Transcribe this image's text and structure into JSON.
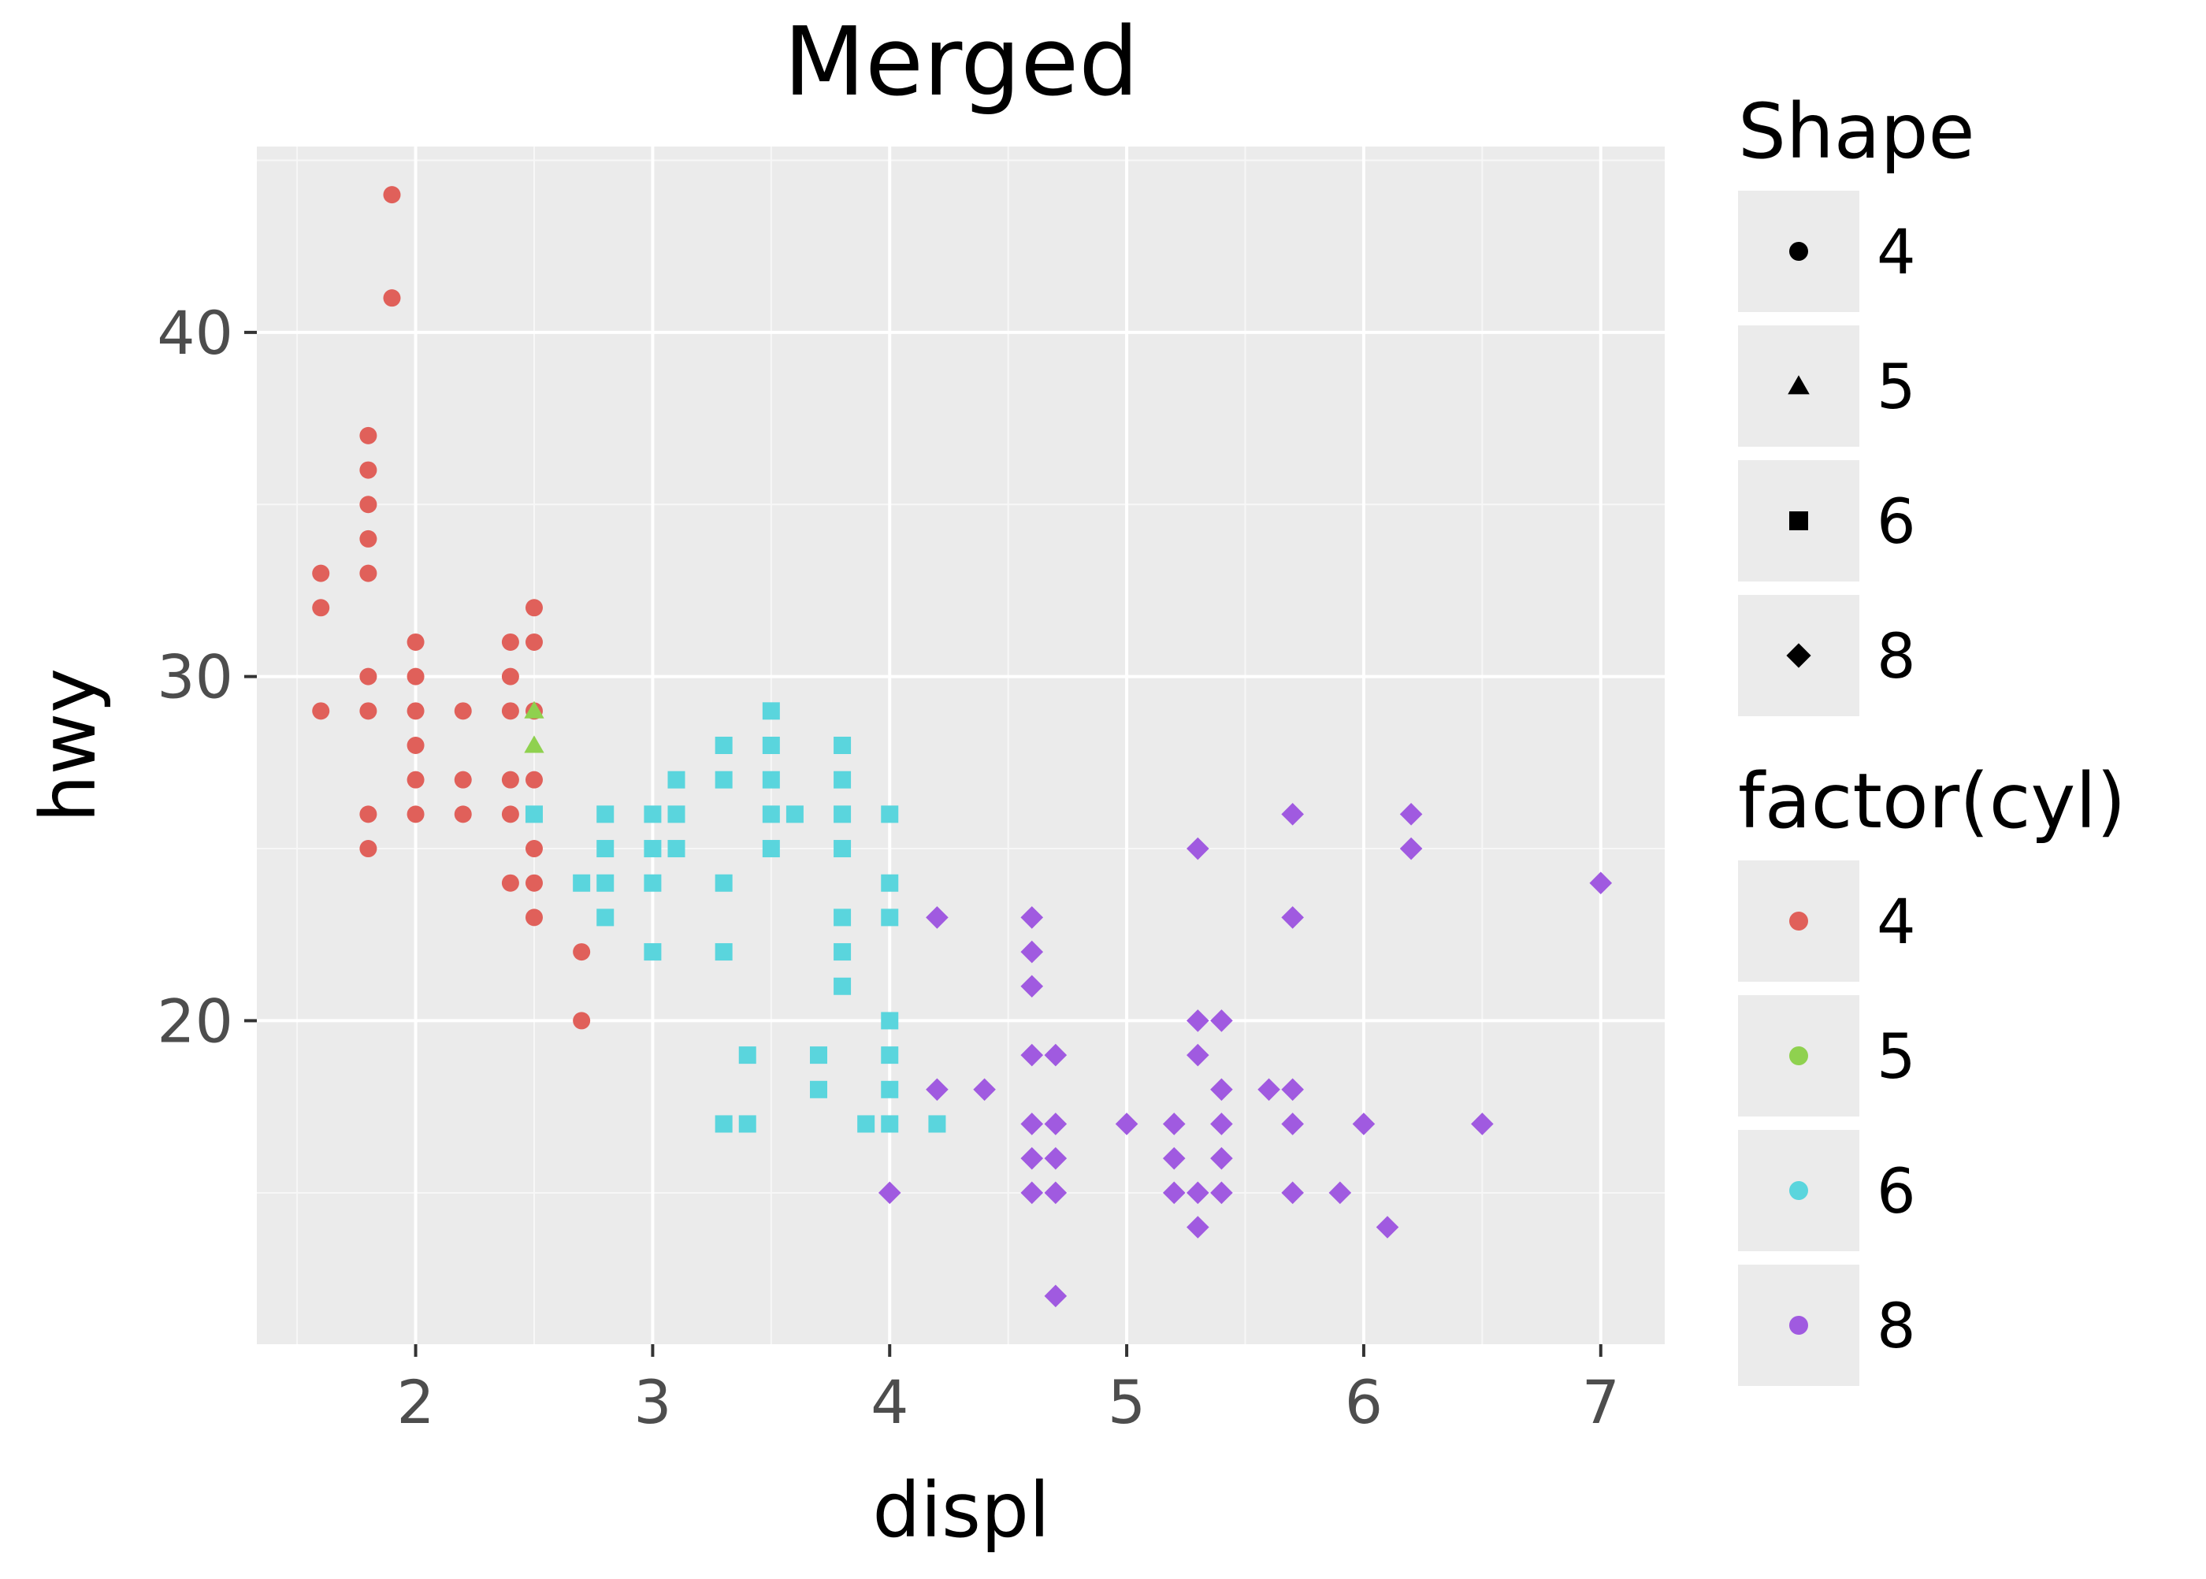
{
  "chart_data": {
    "type": "scatter",
    "title": "Merged",
    "xlabel": "displ",
    "ylabel": "hwy",
    "xlim": [
      1.33,
      7.27
    ],
    "ylim": [
      10.6,
      45.4
    ],
    "x_ticks": [
      2,
      3,
      4,
      5,
      6,
      7
    ],
    "y_ticks": [
      20,
      30,
      40
    ],
    "grid": true,
    "legend_placement": "right",
    "legends": [
      {
        "title": "Shape",
        "entries": [
          {
            "label": "4",
            "shape": "circle"
          },
          {
            "label": "5",
            "shape": "triangle"
          },
          {
            "label": "6",
            "shape": "square"
          },
          {
            "label": "8",
            "shape": "diamond"
          }
        ]
      },
      {
        "title": "factor(cyl)",
        "entries": [
          {
            "label": "4",
            "color": "#e0605a"
          },
          {
            "label": "5",
            "color": "#8fd14f"
          },
          {
            "label": "6",
            "color": "#5ad5dd"
          },
          {
            "label": "8",
            "color": "#a05ae0"
          }
        ]
      }
    ],
    "series": [
      {
        "name": "4",
        "color": "#e0605a",
        "shape": "circle",
        "points": [
          [
            1.6,
            33
          ],
          [
            1.6,
            32
          ],
          [
            1.6,
            29
          ],
          [
            1.8,
            37
          ],
          [
            1.8,
            36
          ],
          [
            1.8,
            35
          ],
          [
            1.8,
            34
          ],
          [
            1.8,
            33
          ],
          [
            1.8,
            30
          ],
          [
            1.8,
            29
          ],
          [
            1.8,
            26
          ],
          [
            1.8,
            25
          ],
          [
            1.9,
            44
          ],
          [
            1.9,
            41
          ],
          [
            2.0,
            31
          ],
          [
            2.0,
            30
          ],
          [
            2.0,
            29
          ],
          [
            2.0,
            28
          ],
          [
            2.0,
            27
          ],
          [
            2.0,
            26
          ],
          [
            2.2,
            29
          ],
          [
            2.2,
            27
          ],
          [
            2.2,
            26
          ],
          [
            2.4,
            31
          ],
          [
            2.4,
            30
          ],
          [
            2.4,
            29
          ],
          [
            2.4,
            27
          ],
          [
            2.4,
            26
          ],
          [
            2.4,
            24
          ],
          [
            2.5,
            32
          ],
          [
            2.5,
            31
          ],
          [
            2.5,
            29
          ],
          [
            2.5,
            27
          ],
          [
            2.5,
            25
          ],
          [
            2.5,
            24
          ],
          [
            2.5,
            23
          ],
          [
            2.7,
            22
          ],
          [
            2.7,
            20
          ]
        ]
      },
      {
        "name": "5",
        "color": "#8fd14f",
        "shape": "triangle",
        "points": [
          [
            2.5,
            29
          ],
          [
            2.5,
            28
          ]
        ]
      },
      {
        "name": "6",
        "color": "#5ad5dd",
        "shape": "square",
        "points": [
          [
            2.5,
            26
          ],
          [
            2.7,
            24
          ],
          [
            2.8,
            26
          ],
          [
            2.8,
            25
          ],
          [
            2.8,
            24
          ],
          [
            2.8,
            23
          ],
          [
            3.0,
            26
          ],
          [
            3.0,
            25
          ],
          [
            3.0,
            24
          ],
          [
            3.0,
            22
          ],
          [
            3.1,
            27
          ],
          [
            3.1,
            26
          ],
          [
            3.1,
            25
          ],
          [
            3.3,
            28
          ],
          [
            3.3,
            27
          ],
          [
            3.3,
            24
          ],
          [
            3.3,
            22
          ],
          [
            3.3,
            17
          ],
          [
            3.4,
            19
          ],
          [
            3.4,
            17
          ],
          [
            3.5,
            29
          ],
          [
            3.5,
            28
          ],
          [
            3.5,
            27
          ],
          [
            3.5,
            26
          ],
          [
            3.5,
            25
          ],
          [
            3.6,
            26
          ],
          [
            3.7,
            19
          ],
          [
            3.7,
            18
          ],
          [
            3.8,
            28
          ],
          [
            3.8,
            27
          ],
          [
            3.8,
            26
          ],
          [
            3.8,
            25
          ],
          [
            3.8,
            23
          ],
          [
            3.8,
            22
          ],
          [
            3.8,
            21
          ],
          [
            3.9,
            17
          ],
          [
            4.0,
            26
          ],
          [
            4.0,
            24
          ],
          [
            4.0,
            23
          ],
          [
            4.0,
            20
          ],
          [
            4.0,
            19
          ],
          [
            4.0,
            18
          ],
          [
            4.0,
            17
          ],
          [
            4.2,
            17
          ]
        ]
      },
      {
        "name": "8",
        "color": "#a05ae0",
        "shape": "diamond",
        "points": [
          [
            4.0,
            15
          ],
          [
            4.2,
            23
          ],
          [
            4.2,
            18
          ],
          [
            4.4,
            18
          ],
          [
            4.6,
            23
          ],
          [
            4.6,
            22
          ],
          [
            4.6,
            21
          ],
          [
            4.6,
            19
          ],
          [
            4.6,
            17
          ],
          [
            4.6,
            16
          ],
          [
            4.6,
            15
          ],
          [
            4.7,
            19
          ],
          [
            4.7,
            17
          ],
          [
            4.7,
            16
          ],
          [
            4.7,
            15
          ],
          [
            4.7,
            12
          ],
          [
            5.0,
            17
          ],
          [
            5.2,
            17
          ],
          [
            5.2,
            16
          ],
          [
            5.2,
            15
          ],
          [
            5.3,
            25
          ],
          [
            5.3,
            20
          ],
          [
            5.3,
            19
          ],
          [
            5.3,
            15
          ],
          [
            5.3,
            14
          ],
          [
            5.4,
            20
          ],
          [
            5.4,
            18
          ],
          [
            5.4,
            17
          ],
          [
            5.4,
            16
          ],
          [
            5.4,
            15
          ],
          [
            5.6,
            18
          ],
          [
            5.7,
            26
          ],
          [
            5.7,
            23
          ],
          [
            5.7,
            18
          ],
          [
            5.7,
            17
          ],
          [
            5.7,
            15
          ],
          [
            5.9,
            15
          ],
          [
            6.0,
            17
          ],
          [
            6.1,
            14
          ],
          [
            6.2,
            26
          ],
          [
            6.2,
            25
          ],
          [
            6.5,
            17
          ],
          [
            7.0,
            24
          ]
        ]
      }
    ]
  }
}
